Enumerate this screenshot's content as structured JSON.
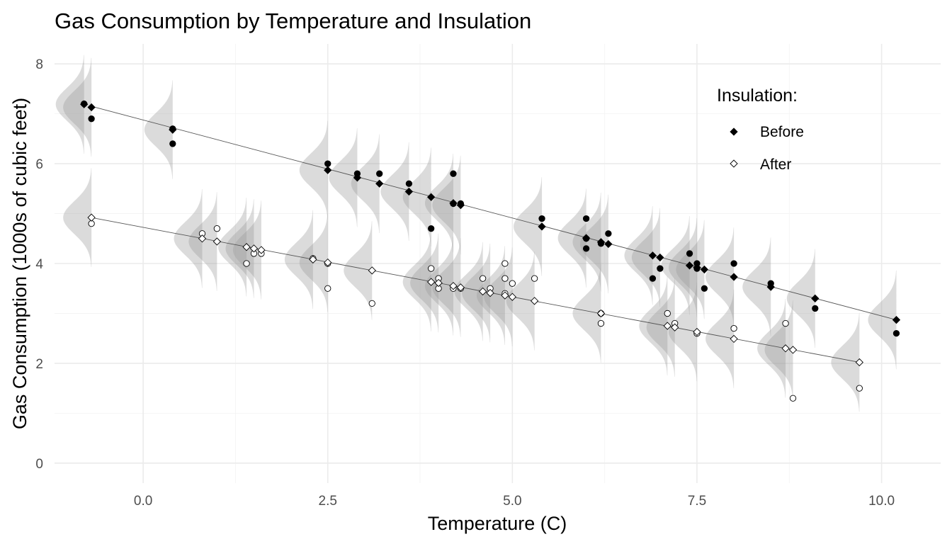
{
  "chart_data": {
    "type": "scatter",
    "title": "Gas Consumption by Temperature and Insulation",
    "xlabel": "Temperature (C)",
    "ylabel": "Gas Consumption (1000s of cubic feet)",
    "xlim": [
      -1.2,
      10.8
    ],
    "ylim": [
      -0.4,
      8.4
    ],
    "x_ticks": [
      0.0,
      2.5,
      5.0,
      7.5,
      10.0
    ],
    "x_tick_labels": [
      "0.0",
      "2.5",
      "5.0",
      "7.5",
      "10.0"
    ],
    "y_ticks": [
      0,
      2,
      4,
      6,
      8
    ],
    "y_tick_labels": [
      "0",
      "2",
      "4",
      "6",
      "8"
    ],
    "grid": true,
    "legend": {
      "title": "Insulation:",
      "position": "top-right",
      "entries": [
        "Before",
        "After"
      ]
    },
    "series": [
      {
        "name": "Before",
        "marker_color": "#000000",
        "observed": {
          "x": [
            -0.8,
            -0.7,
            0.4,
            0.4,
            2.5,
            2.9,
            3.2,
            3.6,
            3.9,
            4.2,
            4.2,
            4.3,
            5.4,
            6.0,
            6.0,
            6.0,
            6.2,
            6.3,
            6.9,
            7.0,
            7.4,
            7.5,
            7.5,
            7.6,
            8.0,
            8.5,
            9.1,
            10.2
          ],
          "y": [
            7.2,
            6.9,
            6.4,
            6.7,
            6.0,
            5.8,
            5.8,
            5.6,
            4.7,
            5.8,
            5.2,
            5.2,
            4.9,
            4.9,
            4.5,
            4.3,
            4.4,
            4.6,
            3.7,
            3.9,
            4.2,
            4.0,
            3.9,
            3.5,
            4.0,
            3.6,
            3.1,
            2.6
          ]
        },
        "fitted": {
          "x": [
            -0.8,
            -0.7,
            0.4,
            2.5,
            2.9,
            3.2,
            3.6,
            3.9,
            4.2,
            4.3,
            5.4,
            6.0,
            6.2,
            6.3,
            6.9,
            7.0,
            7.4,
            7.5,
            7.6,
            8.0,
            8.5,
            9.1,
            10.2
          ],
          "y": [
            7.19,
            7.13,
            6.68,
            5.87,
            5.72,
            5.6,
            5.44,
            5.33,
            5.21,
            5.17,
            4.74,
            4.51,
            4.43,
            4.39,
            4.16,
            4.12,
            3.96,
            3.92,
            3.88,
            3.73,
            3.53,
            3.3,
            2.87
          ]
        },
        "line": {
          "x": [
            -0.7,
            10.2
          ],
          "y": [
            7.15,
            2.87
          ]
        }
      },
      {
        "name": "After",
        "marker_color": "#ffffff",
        "observed": {
          "x": [
            -0.7,
            0.8,
            1.0,
            1.4,
            1.5,
            1.6,
            2.3,
            2.5,
            2.5,
            3.1,
            3.9,
            4.0,
            4.0,
            4.2,
            4.3,
            4.6,
            4.7,
            4.9,
            4.9,
            4.9,
            5.0,
            5.3,
            6.2,
            6.2,
            7.1,
            7.2,
            7.5,
            7.5,
            8.0,
            8.7,
            8.8,
            9.7
          ],
          "y": [
            4.8,
            4.6,
            4.7,
            4.0,
            4.2,
            4.2,
            4.1,
            4.0,
            3.5,
            3.2,
            3.9,
            3.5,
            3.7,
            3.5,
            3.5,
            3.7,
            3.5,
            3.4,
            3.7,
            4.0,
            3.6,
            3.7,
            2.8,
            3.0,
            3.0,
            2.8,
            2.6,
            2.6,
            2.7,
            2.8,
            1.3,
            1.5
          ]
        },
        "fitted": {
          "x": [
            -0.7,
            0.8,
            1.0,
            1.4,
            1.5,
            1.6,
            2.3,
            2.5,
            3.1,
            3.9,
            4.0,
            4.2,
            4.3,
            4.6,
            4.7,
            4.9,
            5.0,
            5.3,
            6.2,
            7.1,
            7.2,
            7.5,
            8.0,
            8.7,
            8.8,
            9.7
          ],
          "y": [
            4.92,
            4.5,
            4.44,
            4.33,
            4.3,
            4.27,
            4.08,
            4.02,
            3.86,
            3.63,
            3.61,
            3.55,
            3.52,
            3.44,
            3.41,
            3.36,
            3.33,
            3.25,
            3.0,
            2.75,
            2.72,
            2.63,
            2.49,
            2.3,
            2.27,
            2.02
          ]
        },
        "line": {
          "x": [
            -0.7,
            9.7
          ],
          "y": [
            4.92,
            2.02
          ]
        }
      }
    ],
    "distribution_sd": 0.33
  }
}
